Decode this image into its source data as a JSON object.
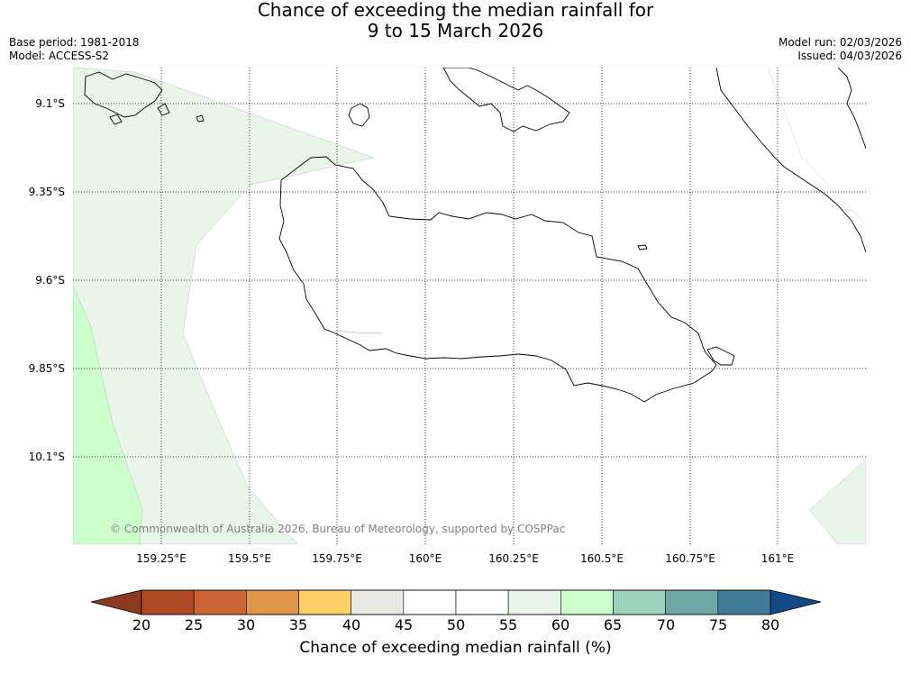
{
  "title": {
    "line1": "Chance of exceeding the median rainfall for",
    "line2": "9 to 15 March 2026"
  },
  "meta": {
    "base_period": "Base period: 1981-2018",
    "model": "Model: ACCESS-S2",
    "model_run": "Model run: 02/03/2026",
    "issued": "Issued: 04/03/2026"
  },
  "map": {
    "lat_labels": [
      "9.1°S",
      "9.35°S",
      "9.6°S",
      "9.85°S",
      "10.1°S"
    ],
    "lon_labels": [
      "159.25°E",
      "159.5°E",
      "159.75°E",
      "160°E",
      "160.25°E",
      "160.5°E",
      "160.75°E",
      "161°E"
    ],
    "copyright": "© Commonwealth of Australia 2026, Bureau of Meteorology, supported by COSPPac"
  },
  "colorbar": {
    "ticks": [
      "20",
      "25",
      "30",
      "35",
      "40",
      "45",
      "50",
      "55",
      "60",
      "65",
      "70",
      "75",
      "80"
    ],
    "colors": [
      "#b04a25",
      "#cc6535",
      "#e09648",
      "#ffd068",
      "#e9e9e4",
      "#ffffff",
      "#ffffff",
      "#eaf5ea",
      "#ccffcc",
      "#9cd2bc",
      "#6fa6a6",
      "#417b98"
    ],
    "under_color": "#8e3a20",
    "over_color": "#144a86",
    "label": "Chance of exceeding median rainfall (%)"
  }
}
